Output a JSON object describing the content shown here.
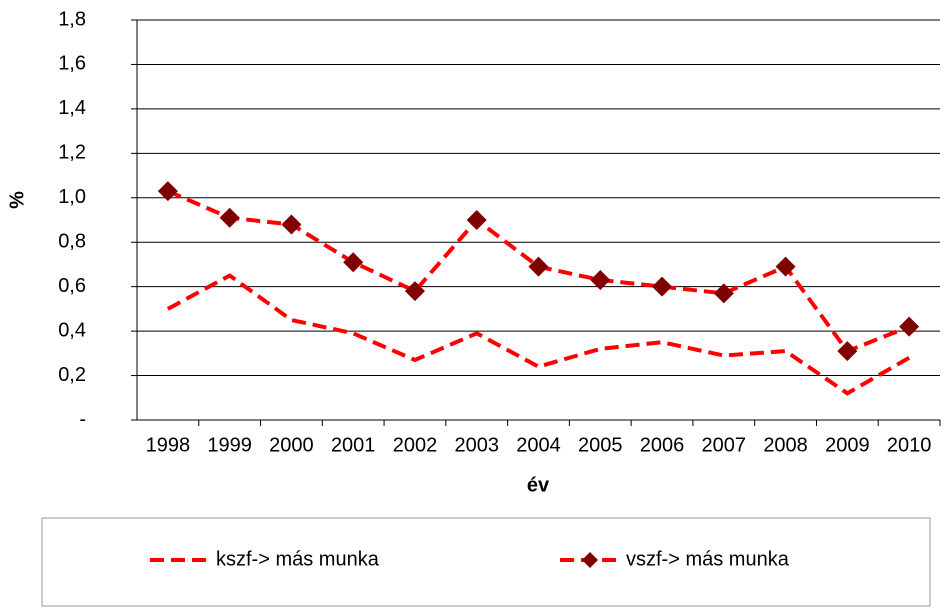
{
  "chart_data": {
    "type": "line",
    "y_label": "%",
    "x_label": "év",
    "categories": [
      "1998",
      "1999",
      "2000",
      "2001",
      "2002",
      "2003",
      "2004",
      "2005",
      "2006",
      "2007",
      "2008",
      "2009",
      "2010"
    ],
    "series": [
      {
        "name": "kszf-> más munka",
        "color": "#ff0000",
        "dashed": true,
        "marker": null,
        "values": [
          0.5,
          0.65,
          0.45,
          0.39,
          0.27,
          0.39,
          0.24,
          0.32,
          0.35,
          0.29,
          0.31,
          0.12,
          0.28
        ]
      },
      {
        "name": "vszf-> más munka",
        "color": "#ff0000",
        "dashed": true,
        "marker": "diamond",
        "marker_color": "#800000",
        "values": [
          1.03,
          0.91,
          0.88,
          0.71,
          0.58,
          0.9,
          0.69,
          0.63,
          0.6,
          0.57,
          0.69,
          0.31,
          0.42
        ]
      }
    ],
    "ylim": [
      0,
      1.8
    ],
    "yticks": [
      {
        "value": 0,
        "label": "-"
      },
      {
        "value": 0.2,
        "label": "0,2"
      },
      {
        "value": 0.4,
        "label": "0,4"
      },
      {
        "value": 0.6,
        "label": "0,6"
      },
      {
        "value": 0.8,
        "label": "0,8"
      },
      {
        "value": 1.0,
        "label": "1,0"
      },
      {
        "value": 1.2,
        "label": "1,2"
      },
      {
        "value": 1.4,
        "label": "1,4"
      },
      {
        "value": 1.6,
        "label": "1,6"
      },
      {
        "value": 1.8,
        "label": "1,8"
      }
    ],
    "grid": true,
    "legend": "bottom"
  }
}
